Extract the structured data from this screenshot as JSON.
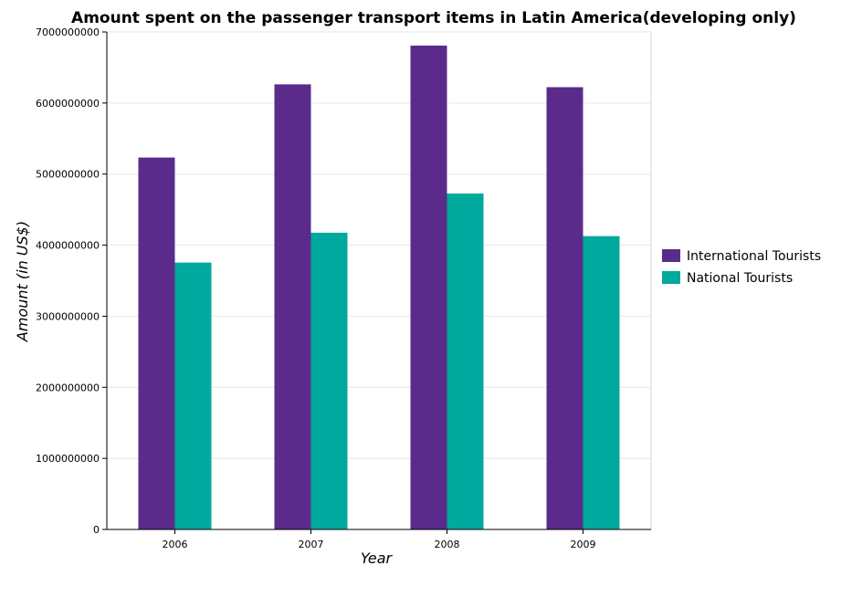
{
  "chart_data": {
    "type": "bar",
    "title": "Amount spent on the passenger transport items in Latin America(developing only)",
    "xlabel": "Year",
    "ylabel": "Amount (in US$)",
    "categories": [
      "2006",
      "2007",
      "2008",
      "2009"
    ],
    "series": [
      {
        "name": "International Tourists",
        "color": "#5b2b8c",
        "values": [
          5233000000,
          6263000000,
          6808000000,
          6223000000
        ]
      },
      {
        "name": "National Tourists",
        "color": "#00a99d",
        "values": [
          3755000000,
          4175000000,
          4727000000,
          4127000000
        ]
      }
    ],
    "ylim": [
      0,
      7000000000
    ],
    "yticks": [
      0,
      1000000000,
      2000000000,
      3000000000,
      4000000000,
      5000000000,
      6000000000,
      7000000000
    ],
    "ytick_labels": [
      "0",
      "1000000000",
      "2000000000",
      "3000000000",
      "4000000000",
      "5000000000",
      "6000000000",
      "7000000000"
    ],
    "grid": true,
    "legend_position": "right"
  }
}
